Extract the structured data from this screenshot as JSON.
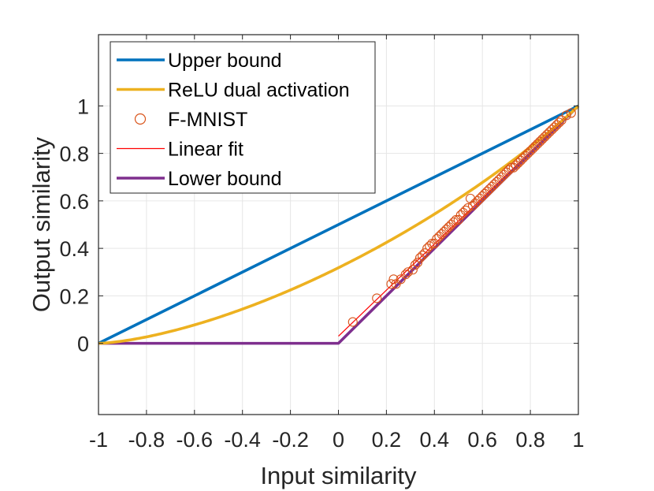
{
  "chart_data": {
    "type": "line",
    "xlabel": "Input similarity",
    "ylabel": "Output similarity",
    "xlim": [
      -1,
      1
    ],
    "ylim": [
      -0.3,
      1.3
    ],
    "xticks": [
      -1,
      -0.8,
      -0.6,
      -0.4,
      -0.2,
      0,
      0.2,
      0.4,
      0.6,
      0.8,
      1
    ],
    "xtick_labels": [
      "-1",
      "-0.8",
      "-0.6",
      "-0.4",
      "-0.2",
      "0",
      "0.2",
      "0.4",
      "0.6",
      "0.8",
      "1"
    ],
    "yticks": [
      0,
      0.2,
      0.4,
      0.6,
      0.8,
      1
    ],
    "ytick_labels": [
      "0",
      "0.2",
      "0.4",
      "0.6",
      "0.8",
      "1"
    ],
    "grid": true,
    "legend_position": "top-left",
    "series": [
      {
        "name": "Upper bound",
        "kind": "line",
        "color": "#0072BD",
        "x": [
          -1,
          1
        ],
        "y": [
          0,
          1
        ]
      },
      {
        "name": "ReLU dual activation",
        "kind": "function",
        "function": "relu_dual",
        "color": "#EDB120",
        "x": [
          -1,
          1
        ]
      },
      {
        "name": "F-MNIST",
        "kind": "scatter",
        "marker": "circle",
        "color": "#D95319",
        "x": [
          0.06,
          0.16,
          0.22,
          0.23,
          0.24,
          0.26,
          0.28,
          0.29,
          0.31,
          0.32,
          0.33,
          0.34,
          0.35,
          0.36,
          0.37,
          0.38,
          0.39,
          0.4,
          0.41,
          0.42,
          0.43,
          0.44,
          0.45,
          0.46,
          0.47,
          0.48,
          0.49,
          0.5,
          0.51,
          0.52,
          0.53,
          0.54,
          0.55,
          0.56,
          0.57,
          0.58,
          0.59,
          0.6,
          0.61,
          0.62,
          0.63,
          0.64,
          0.65,
          0.66,
          0.67,
          0.68,
          0.69,
          0.7,
          0.71,
          0.72,
          0.73,
          0.74,
          0.75,
          0.76,
          0.77,
          0.78,
          0.79,
          0.8,
          0.81,
          0.82,
          0.83,
          0.84,
          0.85,
          0.86,
          0.87,
          0.88,
          0.89,
          0.9,
          0.91,
          0.92,
          0.93,
          0.95,
          0.97
        ],
        "y": [
          0.09,
          0.19,
          0.25,
          0.27,
          0.25,
          0.27,
          0.29,
          0.3,
          0.31,
          0.33,
          0.34,
          0.36,
          0.37,
          0.38,
          0.4,
          0.41,
          0.42,
          0.42,
          0.44,
          0.45,
          0.46,
          0.47,
          0.48,
          0.49,
          0.5,
          0.51,
          0.52,
          0.52,
          0.54,
          0.55,
          0.56,
          0.57,
          0.61,
          0.58,
          0.59,
          0.6,
          0.61,
          0.62,
          0.63,
          0.64,
          0.65,
          0.66,
          0.67,
          0.68,
          0.69,
          0.7,
          0.71,
          0.72,
          0.73,
          0.74,
          0.74,
          0.75,
          0.76,
          0.77,
          0.78,
          0.79,
          0.8,
          0.81,
          0.82,
          0.83,
          0.84,
          0.85,
          0.86,
          0.87,
          0.88,
          0.89,
          0.9,
          0.91,
          0.92,
          0.93,
          0.94,
          0.96,
          0.97
        ]
      },
      {
        "name": "Linear fit",
        "kind": "line",
        "color": "#FF0000",
        "x": [
          0,
          1
        ],
        "y": [
          0.03,
          1
        ]
      },
      {
        "name": "Lower bound",
        "kind": "line",
        "color": "#7E2F8E",
        "x": [
          -1,
          0,
          1
        ],
        "y": [
          0,
          0,
          1
        ]
      }
    ]
  }
}
